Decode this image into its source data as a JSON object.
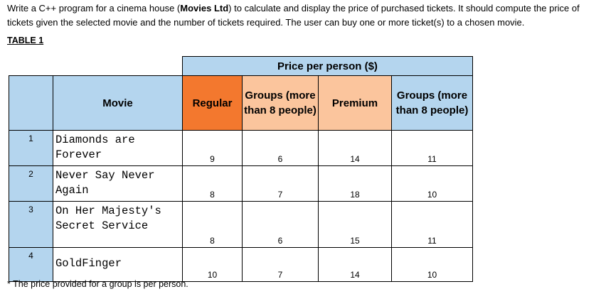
{
  "intro": {
    "part1": "Write a C++ program for a cinema house (",
    "company": "Movies Ltd",
    "part2": ") to calculate and display the price of purchased tickets. It should compute the price of tickets given the selected movie and the number of tickets required. The user can buy one or more ticket(s) to a chosen movie."
  },
  "table_heading": "TABLE 1",
  "table": {
    "super_header": "Price per person ($)",
    "headers": {
      "movie": "Movie",
      "regular": "Regular",
      "groups_regular": "Groups (more than 8 people)",
      "premium": "Premium",
      "groups_premium": "Groups (more than 8 people)"
    },
    "rows": [
      {
        "num": "1",
        "movie": "Diamonds are Forever",
        "regular": "9",
        "groups_regular": "6",
        "premium": "14",
        "groups_premium": "11"
      },
      {
        "num": "2",
        "movie": "Never Say Never Again",
        "regular": "8",
        "groups_regular": "7",
        "premium": "18",
        "groups_premium": "10"
      },
      {
        "num": "3",
        "movie": "On Her Majesty's Secret Service",
        "regular": "8",
        "groups_regular": "6",
        "premium": "15",
        "groups_premium": "11"
      },
      {
        "num": "4",
        "movie": "GoldFinger",
        "regular": "10",
        "groups_regular": "7",
        "premium": "14",
        "groups_premium": "10"
      }
    ]
  },
  "footnote": "* The price provided for a group is per person.",
  "colors": {
    "header_blue": "#b4d5ee",
    "regular_orange": "#f3782e",
    "premium_peach": "#fbc59d"
  }
}
